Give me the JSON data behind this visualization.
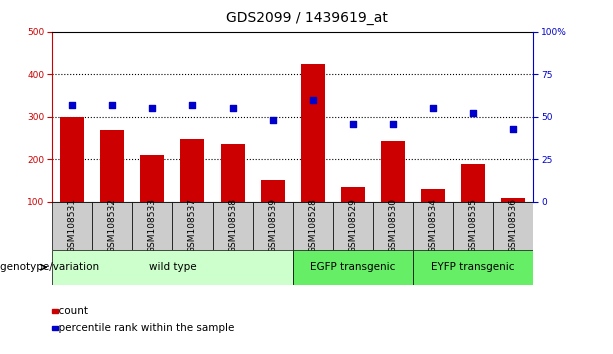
{
  "title": "GDS2099 / 1439619_at",
  "samples": [
    "GSM108531",
    "GSM108532",
    "GSM108533",
    "GSM108537",
    "GSM108538",
    "GSM108539",
    "GSM108528",
    "GSM108529",
    "GSM108530",
    "GSM108534",
    "GSM108535",
    "GSM108536"
  ],
  "counts": [
    300,
    270,
    210,
    248,
    235,
    152,
    425,
    135,
    242,
    130,
    190,
    108
  ],
  "percentiles": [
    57,
    57,
    55,
    57,
    55,
    48,
    60,
    46,
    46,
    55,
    52,
    43
  ],
  "groups": [
    {
      "label": "wild type",
      "start": 0,
      "end": 6,
      "color": "#ccffcc"
    },
    {
      "label": "EGFP transgenic",
      "start": 6,
      "end": 9,
      "color": "#66ee66"
    },
    {
      "label": "EYFP transgenic",
      "start": 9,
      "end": 12,
      "color": "#66ee66"
    }
  ],
  "ylim_left": [
    100,
    500
  ],
  "ylim_right": [
    0,
    100
  ],
  "yticks_left": [
    100,
    200,
    300,
    400,
    500
  ],
  "yticks_right": [
    0,
    25,
    50,
    75,
    100
  ],
  "bar_color": "#cc0000",
  "dot_color": "#0000cc",
  "bg_color": "#ffffff",
  "legend_count": "count",
  "legend_pct": "percentile rank within the sample",
  "title_fontsize": 10,
  "tick_fontsize": 6.5,
  "label_fontsize": 8,
  "small_fontsize": 7.5
}
